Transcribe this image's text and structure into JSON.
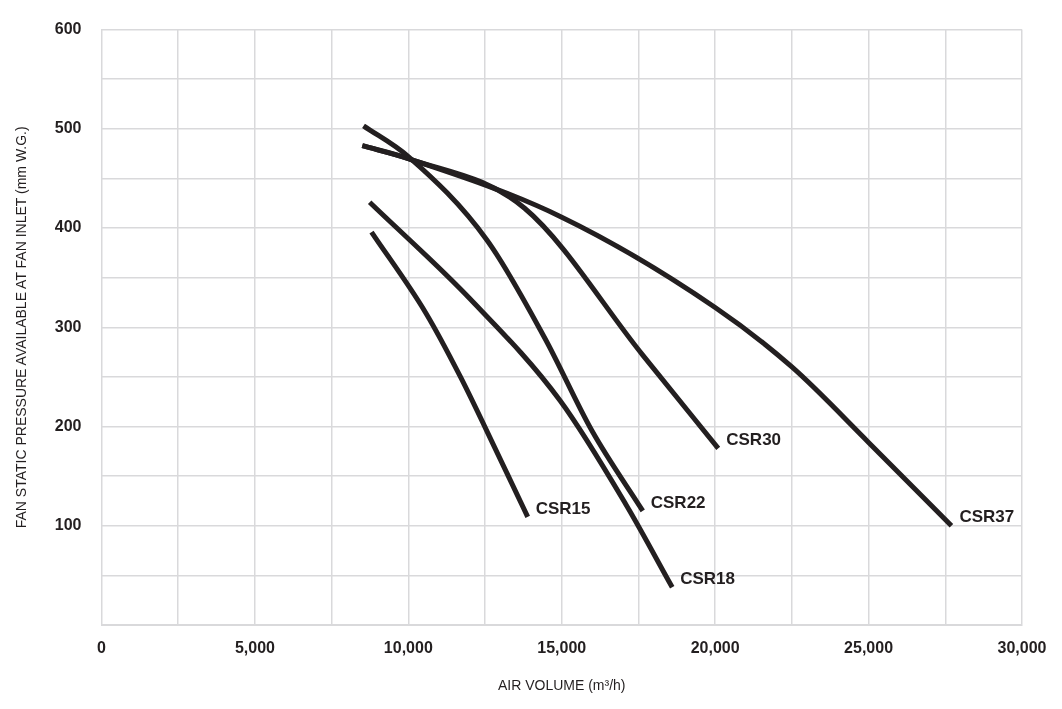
{
  "chart_data": {
    "type": "line",
    "xlabel": "AIR VOLUME (m³/h)",
    "ylabel": "FAN STATIC PRESSURE AVAILABLE AT FAN INLET (mm W.G.)",
    "xlim": [
      0,
      30000
    ],
    "ylim": [
      0,
      600
    ],
    "xticks": [
      {
        "value": 0,
        "label": "0"
      },
      {
        "value": 2500,
        "label": null
      },
      {
        "value": 5000,
        "label": "5,000"
      },
      {
        "value": 7500,
        "label": null
      },
      {
        "value": 10000,
        "label": "10,000"
      },
      {
        "value": 12500,
        "label": null
      },
      {
        "value": 15000,
        "label": "15,000"
      },
      {
        "value": 17500,
        "label": null
      },
      {
        "value": 20000,
        "label": "20,000"
      },
      {
        "value": 22500,
        "label": null
      },
      {
        "value": 25000,
        "label": "25,000"
      },
      {
        "value": 27500,
        "label": null
      },
      {
        "value": 30000,
        "label": "30,000"
      }
    ],
    "yticks": [
      {
        "value": 0,
        "label": null
      },
      {
        "value": 50,
        "label": null
      },
      100,
      {
        "value": 150,
        "label": null
      },
      200,
      {
        "value": 250,
        "label": null
      },
      300,
      {
        "value": 350,
        "label": null
      },
      400,
      {
        "value": 450,
        "label": null
      },
      500,
      {
        "value": 550,
        "label": null
      },
      600
    ],
    "grid": true,
    "marker": "none",
    "line_style": "solid",
    "series": [
      {
        "name": "CSR15",
        "color": "#231f20",
        "x": [
          8800,
          10560,
          11700,
          12890,
          13890
        ],
        "values": [
          396,
          315,
          250,
          174,
          109
        ]
      },
      {
        "name": "CSR18",
        "color": "#231f20",
        "x": [
          8740,
          12000,
          14950,
          17100,
          18600
        ],
        "values": [
          426,
          329,
          226,
          121,
          38
        ]
      },
      {
        "name": "CSR22",
        "color": "#231f20",
        "x": [
          8540,
          10000,
          12560,
          14450,
          15980,
          17640
        ],
        "values": [
          503,
          472,
          388,
          289,
          196,
          115
        ]
      },
      {
        "name": "CSR30",
        "color": "#231f20",
        "x": [
          8500,
          10000,
          13790,
          17640,
          20100
        ],
        "values": [
          483,
          470,
          420,
          272,
          178
        ]
      },
      {
        "name": "CSR37",
        "color": "#231f20",
        "x": [
          8500,
          10000,
          15000,
          20000,
          22500,
          25000,
          27700
        ],
        "values": [
          483,
          470,
          411,
          320,
          260,
          184,
          100
        ]
      }
    ]
  }
}
